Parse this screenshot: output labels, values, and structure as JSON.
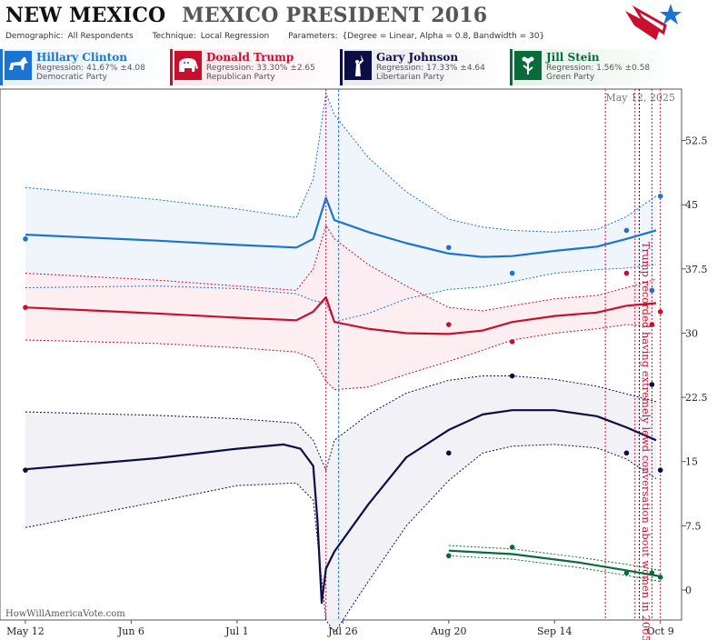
{
  "header": {
    "state": "NEW MEXICO",
    "race": "MEXICO PRESIDENT 2016",
    "demographic_label": "Demographic:",
    "demographic_value": "All Respondents",
    "technique_label": "Technique:",
    "technique_value": "Local Regression",
    "parameters_label": "Parameters:",
    "parameters_value": "{Degree = Linear, Alpha = 0.8, Bandwidth = 30}"
  },
  "legend": [
    {
      "name": "Hillary Clinton",
      "regression": "Regression: 41.67% ±4.08",
      "party": "Democratic Party",
      "color": "#1a75d2",
      "icon": "donkey-icon"
    },
    {
      "name": "Donald Trump",
      "regression": "Regression: 33.30% ±2.65",
      "party": "Republican Party",
      "color": "#c8102e",
      "icon": "elephant-icon"
    },
    {
      "name": "Gary Johnson",
      "regression": "Regression: 17.33% ±4.64",
      "party": "Libertarian Party",
      "color": "#0d0d45",
      "icon": "statue-of-liberty-icon"
    },
    {
      "name": "Jill Stein",
      "regression": "Regression: 1.56% ±0.58",
      "party": "Green Party",
      "color": "#0a6b3a",
      "icon": "flower-icon"
    }
  ],
  "chart_data": {
    "type": "line",
    "date_annotation": "May 12, 2025",
    "event_annotation": "Trump recorded having extremely lewd conversation about women in 2005",
    "credit": "HowWillAmericaVote.com",
    "x_ticks": [
      "May 12",
      "Jun 6",
      "Jul 1",
      "Jul 26",
      "Aug 20",
      "Sep 14",
      "Oct 9"
    ],
    "y_ticks": [
      "0",
      "7.5",
      "15",
      "22.5",
      "30",
      "37.5",
      "45",
      "52.5"
    ],
    "ylim": [
      -3.5,
      58.5
    ],
    "xlim": [
      "May 6",
      "Oct 14"
    ],
    "grid": false,
    "markers": {
      "blue_dashed": [
        "Jul 25"
      ],
      "red_dotted": [
        "Jul 22",
        "Sep 26",
        "Oct 3",
        "Oct 7",
        "Oct 9"
      ],
      "black_dotted": [
        "Oct 4"
      ]
    },
    "series": [
      {
        "name": "Hillary Clinton",
        "color": "#1a75d2",
        "band_fill": "#eef3fb",
        "line": [
          [
            "May 12",
            41.5
          ],
          [
            "Jun 12",
            40.8
          ],
          [
            "Jul 1",
            40.3
          ],
          [
            "Jul 15",
            40.0
          ],
          [
            "Jul 19",
            41.0
          ],
          [
            "Jul 22",
            45.8
          ],
          [
            "Jul 24",
            43.2
          ],
          [
            "Aug 1",
            41.8
          ],
          [
            "Aug 10",
            40.5
          ],
          [
            "Aug 20",
            39.3
          ],
          [
            "Aug 28",
            38.9
          ],
          [
            "Sep 4",
            39.0
          ],
          [
            "Sep 14",
            39.6
          ],
          [
            "Sep 24",
            40.1
          ],
          [
            "Oct 1",
            41.0
          ],
          [
            "Oct 8",
            42.0
          ]
        ],
        "upper": [
          [
            "May 12",
            47.0
          ],
          [
            "Jun 12",
            45.6
          ],
          [
            "Jul 1",
            44.5
          ],
          [
            "Jul 15",
            43.5
          ],
          [
            "Jul 19",
            48.0
          ],
          [
            "Jul 22",
            58.0
          ],
          [
            "Jul 24",
            55.5
          ],
          [
            "Aug 1",
            50.5
          ],
          [
            "Aug 10",
            46.5
          ],
          [
            "Aug 20",
            43.3
          ],
          [
            "Aug 28",
            42.4
          ],
          [
            "Sep 4",
            42.0
          ],
          [
            "Sep 14",
            41.8
          ],
          [
            "Sep 24",
            42.1
          ],
          [
            "Oct 1",
            43.6
          ],
          [
            "Oct 8",
            46.0
          ]
        ],
        "lower": [
          [
            "May 12",
            35.3
          ],
          [
            "Jun 12",
            35.5
          ],
          [
            "Jul 1",
            35.2
          ],
          [
            "Jul 15",
            34.6
          ],
          [
            "Jul 19",
            33.8
          ],
          [
            "Jul 22",
            33.5
          ],
          [
            "Jul 24",
            31.3
          ],
          [
            "Aug 1",
            32.3
          ],
          [
            "Aug 10",
            34.0
          ],
          [
            "Aug 20",
            35.1
          ],
          [
            "Aug 28",
            35.4
          ],
          [
            "Sep 4",
            36.0
          ],
          [
            "Sep 14",
            37.0
          ],
          [
            "Sep 24",
            37.4
          ],
          [
            "Oct 1",
            37.6
          ],
          [
            "Oct 8",
            38.0
          ]
        ],
        "points": [
          [
            "May 12",
            41
          ],
          [
            "Aug 20",
            40
          ],
          [
            "Sep 4",
            37
          ],
          [
            "Oct 1",
            42
          ],
          [
            "Oct 7",
            35
          ],
          [
            "Oct 9",
            46
          ]
        ]
      },
      {
        "name": "Donald Trump",
        "color": "#c8102e",
        "band_fill": "#fcecef",
        "line": [
          [
            "May 12",
            33.0
          ],
          [
            "Jun 12",
            32.3
          ],
          [
            "Jul 1",
            31.8
          ],
          [
            "Jul 15",
            31.5
          ],
          [
            "Jul 19",
            32.5
          ],
          [
            "Jul 22",
            34.2
          ],
          [
            "Jul 24",
            31.3
          ],
          [
            "Aug 1",
            30.5
          ],
          [
            "Aug 10",
            30.0
          ],
          [
            "Aug 20",
            29.9
          ],
          [
            "Aug 28",
            30.3
          ],
          [
            "Sep 4",
            31.3
          ],
          [
            "Sep 14",
            32.0
          ],
          [
            "Sep 24",
            32.4
          ],
          [
            "Oct 1",
            33.2
          ],
          [
            "Oct 8",
            33.5
          ]
        ],
        "upper": [
          [
            "May 12",
            37.0
          ],
          [
            "Jun 12",
            36.2
          ],
          [
            "Jul 1",
            35.5
          ],
          [
            "Jul 15",
            35.0
          ],
          [
            "Jul 19",
            37.5
          ],
          [
            "Jul 22",
            42.6
          ],
          [
            "Jul 24",
            41.0
          ],
          [
            "Aug 1",
            38.0
          ],
          [
            "Aug 10",
            35.5
          ],
          [
            "Aug 20",
            33.0
          ],
          [
            "Aug 28",
            32.6
          ],
          [
            "Sep 4",
            33.2
          ],
          [
            "Sep 14",
            34.0
          ],
          [
            "Sep 24",
            34.4
          ],
          [
            "Oct 1",
            35.3
          ],
          [
            "Oct 8",
            36.3
          ]
        ],
        "lower": [
          [
            "May 12",
            29.2
          ],
          [
            "Jun 12",
            28.8
          ],
          [
            "Jul 1",
            28.3
          ],
          [
            "Jul 15",
            27.8
          ],
          [
            "Jul 19",
            27.0
          ],
          [
            "Jul 22",
            24.4
          ],
          [
            "Jul 24",
            23.4
          ],
          [
            "Aug 1",
            23.7
          ],
          [
            "Aug 10",
            25.2
          ],
          [
            "Aug 20",
            26.7
          ],
          [
            "Aug 28",
            28.0
          ],
          [
            "Sep 4",
            29.2
          ],
          [
            "Sep 14",
            30.0
          ],
          [
            "Sep 24",
            30.5
          ],
          [
            "Oct 1",
            31.0
          ],
          [
            "Oct 8",
            30.8
          ]
        ],
        "points": [
          [
            "May 12",
            33
          ],
          [
            "Aug 20",
            31
          ],
          [
            "Sep 4",
            29
          ],
          [
            "Oct 1",
            37
          ],
          [
            "Oct 7",
            31
          ],
          [
            "Oct 9",
            32.5
          ]
        ]
      },
      {
        "name": "Gary Johnson",
        "color": "#0d0d45",
        "band_fill": "#f1f1f5",
        "line": [
          [
            "May 12",
            14.1
          ],
          [
            "Jun 12",
            15.4
          ],
          [
            "Jul 1",
            16.5
          ],
          [
            "Jul 12",
            17.0
          ],
          [
            "Jul 16",
            16.5
          ],
          [
            "Jul 19",
            14.5
          ],
          [
            "Jul 20",
            8.0
          ],
          [
            "Jul 21",
            -1.5
          ],
          [
            "Jul 22",
            2.5
          ],
          [
            "Jul 24",
            4.5
          ],
          [
            "Aug 1",
            10.0
          ],
          [
            "Aug 10",
            15.5
          ],
          [
            "Aug 20",
            18.7
          ],
          [
            "Aug 28",
            20.5
          ],
          [
            "Sep 4",
            21.0
          ],
          [
            "Sep 14",
            21.0
          ],
          [
            "Sep 24",
            20.3
          ],
          [
            "Oct 1",
            19.0
          ],
          [
            "Oct 8",
            17.5
          ]
        ],
        "upper": [
          [
            "May 12",
            20.8
          ],
          [
            "Jun 12",
            20.4
          ],
          [
            "Jul 1",
            20.0
          ],
          [
            "Jul 15",
            19.5
          ],
          [
            "Jul 19",
            17.5
          ],
          [
            "Jul 22",
            14.0
          ],
          [
            "Jul 24",
            17.5
          ],
          [
            "Aug 1",
            20.5
          ],
          [
            "Aug 10",
            23.0
          ],
          [
            "Aug 20",
            24.5
          ],
          [
            "Aug 28",
            25.0
          ],
          [
            "Sep 4",
            25.0
          ],
          [
            "Sep 14",
            24.6
          ],
          [
            "Sep 24",
            23.8
          ],
          [
            "Oct 1",
            22.9
          ],
          [
            "Oct 8",
            22.0
          ]
        ],
        "lower": [
          [
            "May 12",
            7.3
          ],
          [
            "Jun 12",
            10.3
          ],
          [
            "Jul 1",
            12.2
          ],
          [
            "Jul 15",
            12.5
          ],
          [
            "Jul 19",
            10.5
          ],
          [
            "Jul 22",
            -3.5
          ],
          [
            "Jul 24",
            -5.0
          ],
          [
            "Aug 1",
            1.0
          ],
          [
            "Aug 10",
            7.5
          ],
          [
            "Aug 20",
            12.8
          ],
          [
            "Aug 28",
            16.0
          ],
          [
            "Sep 4",
            16.8
          ],
          [
            "Sep 14",
            17.0
          ],
          [
            "Sep 24",
            16.6
          ],
          [
            "Oct 1",
            15.3
          ],
          [
            "Oct 8",
            13.0
          ]
        ],
        "points": [
          [
            "May 12",
            14
          ],
          [
            "Aug 20",
            16
          ],
          [
            "Sep 4",
            25
          ],
          [
            "Oct 1",
            16
          ],
          [
            "Oct 7",
            24
          ],
          [
            "Oct 9",
            14
          ]
        ]
      },
      {
        "name": "Jill Stein",
        "color": "#0a6b3a",
        "band_fill": "#ffffff",
        "line": [
          [
            "Aug 20",
            4.6
          ],
          [
            "Sep 4",
            4.2
          ],
          [
            "Sep 20",
            3.2
          ],
          [
            "Oct 1",
            2.3
          ],
          [
            "Oct 9",
            1.6
          ]
        ],
        "upper": [
          [
            "Aug 20",
            5.2
          ],
          [
            "Sep 4",
            4.8
          ],
          [
            "Sep 20",
            3.8
          ],
          [
            "Oct 1",
            3.0
          ],
          [
            "Oct 9",
            2.3
          ]
        ],
        "lower": [
          [
            "Aug 20",
            4.0
          ],
          [
            "Sep 4",
            3.6
          ],
          [
            "Sep 20",
            2.6
          ],
          [
            "Oct 1",
            1.7
          ],
          [
            "Oct 9",
            1.0
          ]
        ],
        "points": [
          [
            "Aug 20",
            4
          ],
          [
            "Sep 4",
            5
          ],
          [
            "Oct 1",
            2
          ],
          [
            "Oct 7",
            2
          ],
          [
            "Oct 9",
            1.5
          ]
        ]
      }
    ]
  }
}
